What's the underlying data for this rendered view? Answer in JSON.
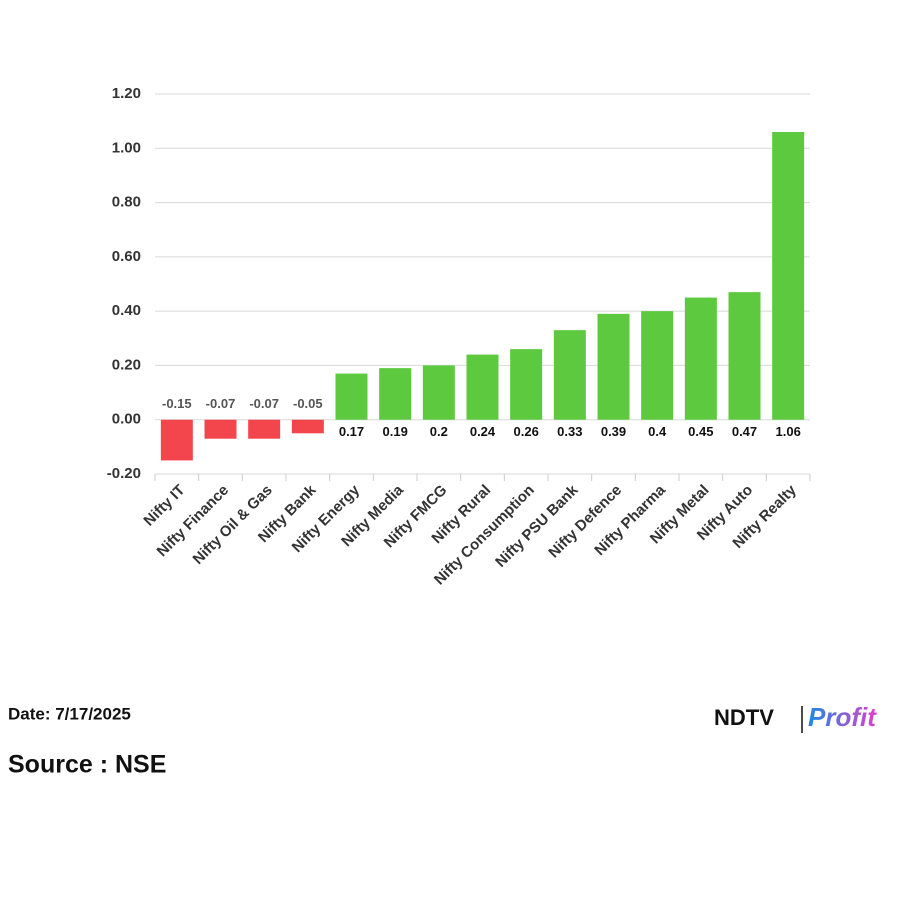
{
  "chart_data": {
    "type": "bar",
    "categories": [
      "Nifty IT",
      "Nifty Finance",
      "Nifty Oil & Gas",
      "Nifty Bank",
      "Nifty Energy",
      "Nifty Media",
      "Nifty FMCG",
      "Nifty Rural",
      "Nifty Consumption",
      "Nifty PSU Bank",
      "Nifty Defence",
      "Nifty Pharma",
      "Nifty Metal",
      "Nifty Auto",
      "Nifty Realty"
    ],
    "values": [
      -0.15,
      -0.07,
      -0.07,
      -0.05,
      0.17,
      0.19,
      0.2,
      0.24,
      0.26,
      0.33,
      0.39,
      0.4,
      0.45,
      0.47,
      1.06
    ],
    "positive_color": "#5cc93e",
    "negative_color": "#f2454c",
    "ylim": [
      -0.2,
      1.2
    ],
    "yticks": [
      {
        "value": -0.2,
        "label": "-0.20"
      },
      {
        "value": 0,
        "label": "0.00"
      },
      {
        "value": 0.2,
        "label": "0.20"
      },
      {
        "value": 0.4,
        "label": "0.40"
      },
      {
        "value": 0.6,
        "label": "0.60"
      },
      {
        "value": 0.8,
        "label": "0.80"
      },
      {
        "value": 1,
        "label": "1.00"
      },
      {
        "value": 1.2,
        "label": "1.20"
      }
    ],
    "grid": true
  },
  "footer": {
    "date": "Date: 7/17/2025",
    "source": "Source : NSE",
    "logo_left": "NDTV",
    "logo_right": "Profit"
  }
}
